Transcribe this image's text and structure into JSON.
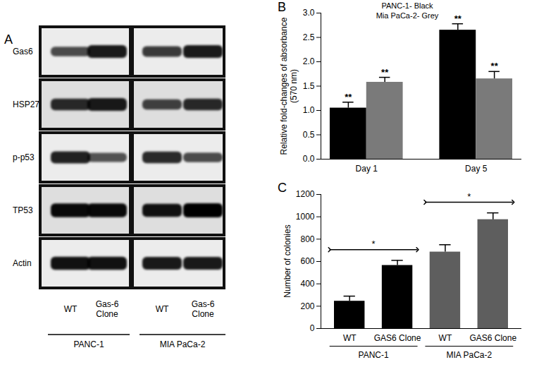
{
  "blot": {
    "panel_label": "A",
    "rows": [
      {
        "name": "Gas6",
        "intensity": [
          0.55,
          0.85,
          0.65,
          0.85
        ]
      },
      {
        "name": "HSP27",
        "intensity": [
          0.75,
          0.85,
          0.6,
          0.75
        ]
      },
      {
        "name": "p-p53",
        "intensity": [
          0.8,
          0.5,
          0.75,
          0.55
        ]
      },
      {
        "name": "TP53",
        "intensity": [
          0.95,
          0.95,
          0.9,
          1.0
        ]
      },
      {
        "name": "Actin",
        "intensity": [
          0.9,
          0.9,
          0.85,
          0.85
        ]
      }
    ],
    "lanes": [
      "WT",
      "Gas-6 Clone",
      "WT",
      "Gas-6 Clone"
    ],
    "groups": [
      {
        "label": "PANC-1",
        "lanes": [
          0,
          1
        ]
      },
      {
        "label": "MIA PaCa-2",
        "lanes": [
          2,
          3
        ]
      }
    ]
  },
  "chart_data": [
    {
      "type": "bar",
      "panel_label": "B",
      "title": "PANC-1- Black",
      "subtitle": "Mia PaCa-2- Grey",
      "y_label": "Relative fold-changes of absorbance (570 nm)",
      "categories": [
        "Day 1",
        "Day 5"
      ],
      "series": [
        {
          "color": "#000000",
          "values": [
            1.05,
            2.65
          ],
          "errors": [
            0.12,
            0.13
          ],
          "annotations": [
            "**",
            "**"
          ]
        },
        {
          "color": "#7a7a7a",
          "values": [
            1.58,
            1.65
          ],
          "errors": [
            0.1,
            0.15
          ],
          "annotations": [
            "**",
            "**"
          ]
        }
      ],
      "ylim": [
        0,
        3
      ],
      "yticks": [
        {
          "value": 0,
          "label": "0.0"
        },
        0.5,
        {
          "value": 1,
          "label": "1.0"
        },
        1.5,
        {
          "value": 2,
          "label": "2.0"
        },
        2.5,
        {
          "value": 3,
          "label": "3.0"
        }
      ],
      "grid": false
    },
    {
      "type": "bar",
      "panel_label": "C",
      "y_label": "Number of colonies",
      "categories": [
        "WT",
        "GAS6 Clone",
        "WT",
        "GAS6 Clone"
      ],
      "values": [
        245,
        565,
        685,
        975
      ],
      "errors": [
        45,
        45,
        65,
        60
      ],
      "colors": [
        "#000000",
        "#000000",
        "#5e5e5e",
        "#5e5e5e"
      ],
      "groups": [
        {
          "label": "PANC-1",
          "categories": [
            0,
            1
          ]
        },
        {
          "label": "MIA PaCa-2",
          "categories": [
            2,
            3
          ]
        }
      ],
      "comparisons": [
        {
          "between": [
            0,
            1
          ],
          "label": "*"
        },
        {
          "between": [
            2,
            3
          ],
          "label": "*"
        }
      ],
      "ylim": [
        0,
        1200
      ],
      "yticks": [
        0,
        200,
        400,
        600,
        800,
        1000,
        1200
      ],
      "grid": false
    }
  ]
}
